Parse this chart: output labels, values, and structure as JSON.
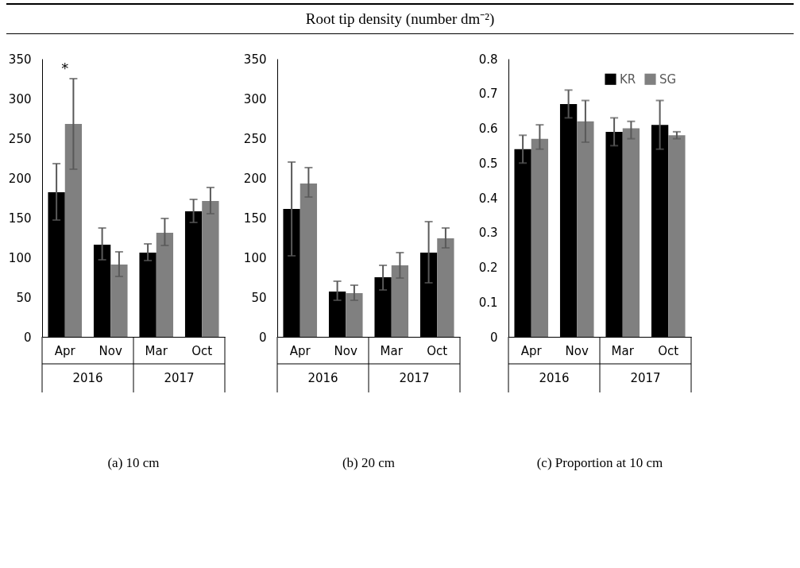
{
  "chart_data": [
    {
      "type": "other",
      "title": "Root tip density (number dm⁻²)"
    },
    {
      "type": "bar",
      "title": "(a) 10 cm",
      "categories": [
        "Apr",
        "Nov",
        "Mar",
        "Oct"
      ],
      "ylim": [
        0,
        350
      ],
      "yticks": [
        0,
        50,
        100,
        150,
        200,
        250,
        300,
        350
      ],
      "grid": false,
      "legend": false,
      "annotations": [
        "2016",
        "2017",
        "*"
      ],
      "series": [
        {
          "color": "#000000",
          "values": [
            182,
            116,
            106,
            158
          ],
          "errors": [
            [
              147,
              218
            ],
            [
              97,
              137
            ],
            [
              96,
              117
            ],
            [
              144,
              173
            ]
          ]
        },
        {
          "color": "#808080",
          "values": [
            268,
            91,
            131,
            171
          ],
          "errors": [
            [
              211,
              325
            ],
            [
              76,
              107
            ],
            [
              115,
              149
            ],
            [
              155,
              188
            ]
          ]
        }
      ]
    },
    {
      "type": "bar",
      "title": "(b) 20 cm",
      "categories": [
        "Apr",
        "Nov",
        "Mar",
        "Oct"
      ],
      "ylim": [
        0,
        350
      ],
      "yticks": [
        0,
        50,
        100,
        150,
        200,
        250,
        300,
        350
      ],
      "grid": false,
      "legend": false,
      "annotations": [
        "2016",
        "2017"
      ],
      "series": [
        {
          "color": "#000000",
          "values": [
            161,
            57,
            75,
            106
          ],
          "errors": [
            [
              102,
              220
            ],
            [
              46,
              70
            ],
            [
              59,
              90
            ],
            [
              68,
              145
            ]
          ]
        },
        {
          "color": "#808080",
          "values": [
            193,
            55,
            90,
            124
          ],
          "errors": [
            [
              176,
              213
            ],
            [
              46,
              65
            ],
            [
              74,
              106
            ],
            [
              112,
              137
            ]
          ]
        }
      ]
    },
    {
      "type": "bar",
      "title": "(c) Proportion at 10 cm",
      "categories": [
        "Apr",
        "Nov",
        "Mar",
        "Oct"
      ],
      "ylim": [
        0,
        0.8
      ],
      "yticks": [
        0,
        0.1,
        0.2,
        0.3,
        0.4,
        0.5,
        0.6,
        0.7,
        0.8
      ],
      "grid": false,
      "legend": "top right",
      "annotations": [
        "2016",
        "2017"
      ],
      "series": [
        {
          "name": "KR",
          "color": "#000000",
          "values": [
            0.54,
            0.67,
            0.59,
            0.61
          ],
          "errors": [
            [
              0.5,
              0.58
            ],
            [
              0.63,
              0.71
            ],
            [
              0.55,
              0.63
            ],
            [
              0.54,
              0.68
            ]
          ]
        },
        {
          "name": "SG",
          "color": "#808080",
          "values": [
            0.57,
            0.62,
            0.6,
            0.58
          ],
          "errors": [
            [
              0.54,
              0.61
            ],
            [
              0.56,
              0.68
            ],
            [
              0.57,
              0.62
            ],
            [
              0.57,
              0.59
            ]
          ]
        }
      ]
    }
  ]
}
